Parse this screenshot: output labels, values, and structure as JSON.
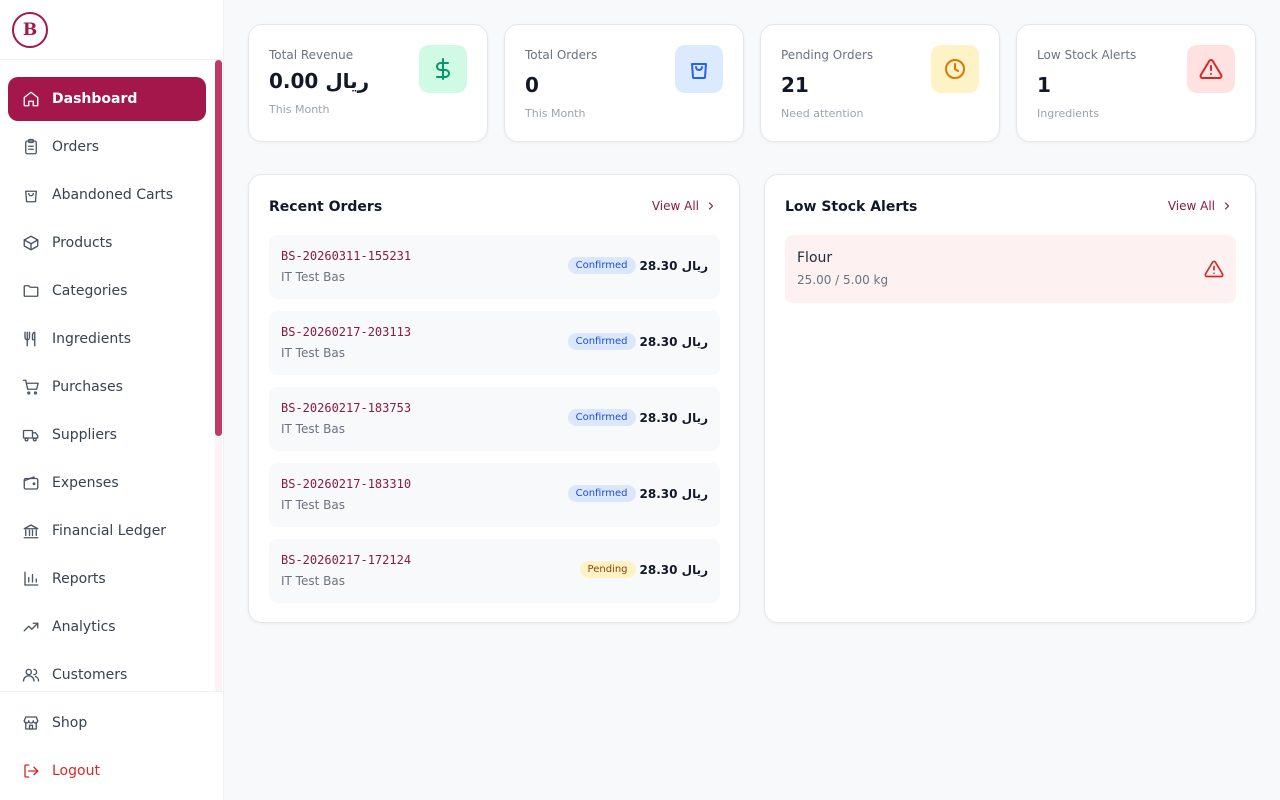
{
  "brand": {
    "logo_letter": "B"
  },
  "sidebar": {
    "items": [
      {
        "label": "Dashboard",
        "icon": "home-icon",
        "active": true
      },
      {
        "label": "Orders",
        "icon": "clipboard-icon"
      },
      {
        "label": "Abandoned Carts",
        "icon": "shopping-bag-icon"
      },
      {
        "label": "Products",
        "icon": "box-icon"
      },
      {
        "label": "Categories",
        "icon": "folder-icon"
      },
      {
        "label": "Ingredients",
        "icon": "utensils-icon"
      },
      {
        "label": "Purchases",
        "icon": "cart-icon"
      },
      {
        "label": "Suppliers",
        "icon": "truck-icon"
      },
      {
        "label": "Expenses",
        "icon": "wallet-icon"
      },
      {
        "label": "Financial Ledger",
        "icon": "bank-icon"
      },
      {
        "label": "Reports",
        "icon": "bar-chart-icon"
      },
      {
        "label": "Analytics",
        "icon": "trending-up-icon"
      },
      {
        "label": "Customers",
        "icon": "users-icon"
      }
    ],
    "bottom": [
      {
        "label": "Shop",
        "icon": "store-icon"
      },
      {
        "label": "Logout",
        "icon": "logout-icon"
      }
    ]
  },
  "stats": [
    {
      "label": "Total Revenue",
      "value": "0.00 ريال",
      "sub": "This Month",
      "icon": "dollar-icon",
      "bg": "#d1fae5",
      "fg": "#059669"
    },
    {
      "label": "Total Orders",
      "value": "0",
      "sub": "This Month",
      "icon": "shopping-bag-icon",
      "bg": "#dbeafe",
      "fg": "#2563eb"
    },
    {
      "label": "Pending Orders",
      "value": "21",
      "sub": "Need attention",
      "icon": "clock-icon",
      "bg": "#fef3c7",
      "fg": "#d97706"
    },
    {
      "label": "Low Stock Alerts",
      "value": "1",
      "sub": "Ingredients",
      "icon": "alert-triangle-icon",
      "bg": "#fee2e2",
      "fg": "#dc2626"
    }
  ],
  "recent_orders": {
    "title": "Recent Orders",
    "view_all": "View All",
    "rows": [
      {
        "number": "BS-20260311-155231",
        "customer": "IT Test Bas",
        "status": "Confirmed",
        "price": "ريال 28.30"
      },
      {
        "number": "BS-20260217-203113",
        "customer": "IT Test Bas",
        "status": "Confirmed",
        "price": "ريال 28.30"
      },
      {
        "number": "BS-20260217-183753",
        "customer": "IT Test Bas",
        "status": "Confirmed",
        "price": "ريال 28.30"
      },
      {
        "number": "BS-20260217-183310",
        "customer": "IT Test Bas",
        "status": "Confirmed",
        "price": "ريال 28.30"
      },
      {
        "number": "BS-20260217-172124",
        "customer": "IT Test Bas",
        "status": "Pending",
        "price": "ريال 28.30"
      }
    ]
  },
  "low_stock": {
    "title": "Low Stock Alerts",
    "view_all": "View All",
    "rows": [
      {
        "name": "Flour",
        "quantity": "25.00 / 5.00 kg"
      }
    ]
  },
  "colors": {
    "accent": "#a3174a",
    "link": "#8b1a42",
    "logout": "#dc2626"
  }
}
